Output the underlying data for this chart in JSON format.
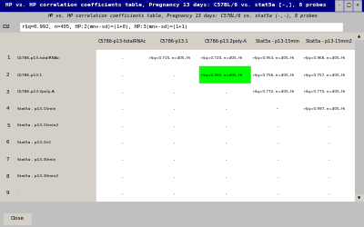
{
  "title_bar": "HP vs. HP correlation coefficients table, Pregnancy 13 days: C57BL/6 vs. stat5a [-,], 8 probes",
  "subtitle": "HP vs. HP correlation coefficients table, Pregnancy 13 days: C57BL/6 vs. stat5a (-,-), 8 probes",
  "filter_label": "D2",
  "filter_text": "r$q=0.992, n=405, HP:2(mn+-sd)=(1+0), HP:3(mn+-sd)=(1+1)",
  "col_headers": [
    "",
    "",
    "C5786-p13-totalRNAc",
    "C5786-p13.1",
    "C5786-p13.2poly-A",
    "Stat5a - p13-15min",
    "Stat5a - p13-15min2"
  ],
  "row_data": [
    {
      "row": "1",
      "label": "C5786-p13-totalRNAc",
      "vals": [
        ".",
        "r$q=0.715, n=405, Hi",
        "r$q=0.720, n=405, Hi",
        "r$q=0.953, n=405, Hi",
        "r$q=0.968, n=405, Hi"
      ]
    },
    {
      "row": "2",
      "label": "C5786-p13.1",
      "vals": [
        ".",
        ".",
        "r$q=0.992, n=405, Hi",
        "r$q=0.756, n=405, Hi",
        "r$q=0.757, n=405, Hi"
      ]
    },
    {
      "row": "3",
      "label": "C5786-p13.2poly-A",
      "vals": [
        ".",
        ".",
        ".",
        "r$q=0.772, n=405, Hi",
        "r$q=0.773, n=405, Hi"
      ]
    },
    {
      "row": "4",
      "label": "Stat5a - p13-15min",
      "vals": [
        ".",
        ".",
        ".",
        "-",
        "r$q=0.997, n=405, Hi"
      ]
    },
    {
      "row": "5",
      "label": "Stat5a - p13-15min2",
      "vals": [
        ".",
        ".",
        ".",
        ".",
        "."
      ]
    },
    {
      "row": "6",
      "label": "Stat5a - p13-1h2",
      "vals": [
        ".",
        ".",
        ".",
        ".",
        "."
      ]
    },
    {
      "row": "7",
      "label": "Stat5a - p13-30min",
      "vals": [
        ".",
        ".",
        ".",
        ".",
        "."
      ]
    },
    {
      "row": "8",
      "label": "Stat5a - p13-30min2",
      "vals": [
        ".",
        ".",
        ".",
        ".",
        "."
      ]
    },
    {
      "row": "9",
      "label": ".",
      "vals": [
        ".",
        ".",
        ".",
        ".",
        "."
      ]
    }
  ],
  "highlight_cell": [
    1,
    2
  ],
  "highlight_color": "#00ff00",
  "bg_color": "#c0c0c0",
  "title_bar_color": "#000080",
  "title_bar_text_color": "#ffffff",
  "cell_bg": "#ffffff",
  "header_bg": "#d4d0c8",
  "close_button_text": "Close"
}
